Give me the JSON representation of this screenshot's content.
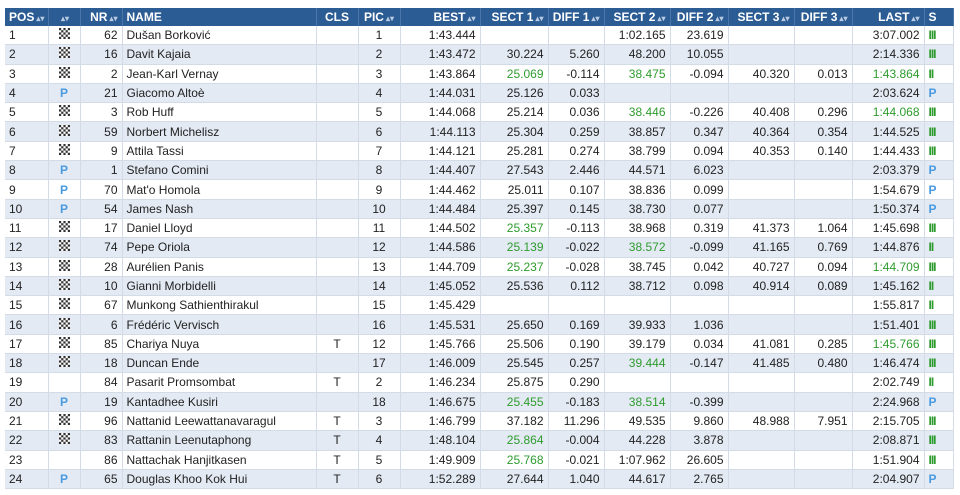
{
  "table": {
    "header": [
      "POS",
      null,
      "NR",
      "NAME",
      "CLS",
      "PIC",
      "BEST",
      "SECT 1",
      "DIFF 1",
      "SECT 2",
      "DIFF 2",
      "SECT 3",
      "DIFF 3",
      "LAST",
      "S"
    ],
    "rows": [
      {
        "flag": true,
        "green": [],
        "cells": [
          "1",
          null,
          "62",
          "Dušan Borković",
          null,
          "1",
          "1:43.444",
          null,
          null,
          "1:02.165",
          "23.619",
          null,
          null,
          "3:07.002",
          "III"
        ]
      },
      {
        "flag": true,
        "green": [],
        "cells": [
          "2",
          null,
          "16",
          "Davit Kajaia",
          null,
          "2",
          "1:43.472",
          "30.224",
          "5.260",
          "48.200",
          "10.055",
          null,
          null,
          "2:14.336",
          "III"
        ]
      },
      {
        "flag": true,
        "green": [
          7,
          9,
          13
        ],
        "cells": [
          "3",
          null,
          "2",
          "Jean-Karl Vernay",
          null,
          "3",
          "1:43.864",
          "25.069",
          "-0.114",
          "38.475",
          "-0.094",
          "40.320",
          "0.013",
          "1:43.864",
          "II"
        ]
      },
      {
        "flag": false,
        "green": [],
        "cells": [
          "4",
          "P",
          "21",
          "Giacomo Altoè",
          null,
          "4",
          "1:44.031",
          "25.126",
          "0.033",
          null,
          null,
          null,
          null,
          "2:03.624",
          "P"
        ]
      },
      {
        "flag": true,
        "green": [
          9,
          13
        ],
        "cells": [
          "5",
          null,
          "3",
          "Rob Huff",
          null,
          "5",
          "1:44.068",
          "25.214",
          "0.036",
          "38.446",
          "-0.226",
          "40.408",
          "0.296",
          "1:44.068",
          "III"
        ]
      },
      {
        "flag": true,
        "green": [],
        "cells": [
          "6",
          null,
          "59",
          "Norbert Michelisz",
          null,
          "6",
          "1:44.113",
          "25.304",
          "0.259",
          "38.857",
          "0.347",
          "40.364",
          "0.354",
          "1:44.525",
          "III"
        ]
      },
      {
        "flag": true,
        "green": [],
        "cells": [
          "7",
          null,
          "9",
          "Attila Tassi",
          null,
          "7",
          "1:44.121",
          "25.281",
          "0.274",
          "38.799",
          "0.094",
          "40.353",
          "0.140",
          "1:44.433",
          "III"
        ]
      },
      {
        "flag": false,
        "green": [],
        "cells": [
          "8",
          "P",
          "1",
          "Stefano Comini",
          null,
          "8",
          "1:44.407",
          "27.543",
          "2.446",
          "44.571",
          "6.023",
          null,
          null,
          "2:03.379",
          "P"
        ]
      },
      {
        "flag": false,
        "green": [],
        "cells": [
          "9",
          "P",
          "70",
          "Mat'o Homola",
          null,
          "9",
          "1:44.462",
          "25.011",
          "0.107",
          "38.836",
          "0.099",
          null,
          null,
          "1:54.679",
          "P"
        ]
      },
      {
        "flag": false,
        "green": [],
        "cells": [
          "10",
          "P",
          "54",
          "James Nash",
          null,
          "10",
          "1:44.484",
          "25.397",
          "0.145",
          "38.730",
          "0.077",
          null,
          null,
          "1:50.374",
          "P"
        ]
      },
      {
        "flag": true,
        "green": [
          7
        ],
        "cells": [
          "11",
          null,
          "17",
          "Daniel Lloyd",
          null,
          "11",
          "1:44.502",
          "25.357",
          "-0.113",
          "38.968",
          "0.319",
          "41.373",
          "1.064",
          "1:45.698",
          "III"
        ]
      },
      {
        "flag": true,
        "green": [
          7,
          9
        ],
        "cells": [
          "12",
          null,
          "74",
          "Pepe Oriola",
          null,
          "12",
          "1:44.586",
          "25.139",
          "-0.022",
          "38.572",
          "-0.099",
          "41.165",
          "0.769",
          "1:44.876",
          "II"
        ]
      },
      {
        "flag": true,
        "green": [
          7,
          13
        ],
        "cells": [
          "13",
          null,
          "28",
          "Aurélien Panis",
          null,
          "13",
          "1:44.709",
          "25.237",
          "-0.028",
          "38.745",
          "0.042",
          "40.727",
          "0.094",
          "1:44.709",
          "III"
        ]
      },
      {
        "flag": true,
        "green": [],
        "cells": [
          "14",
          null,
          "10",
          "Gianni Morbidelli",
          null,
          "14",
          "1:45.052",
          "25.536",
          "0.112",
          "38.712",
          "0.098",
          "40.914",
          "0.089",
          "1:45.162",
          "II"
        ]
      },
      {
        "flag": true,
        "green": [],
        "cells": [
          "15",
          null,
          "67",
          "Munkong Sathienthirakul",
          null,
          "15",
          "1:45.429",
          null,
          null,
          null,
          null,
          null,
          null,
          "1:55.817",
          "II"
        ]
      },
      {
        "flag": true,
        "green": [],
        "cells": [
          "16",
          null,
          "6",
          "Frédéric Vervisch",
          null,
          "16",
          "1:45.531",
          "25.650",
          "0.169",
          "39.933",
          "1.036",
          null,
          null,
          "1:51.401",
          "III"
        ]
      },
      {
        "flag": true,
        "green": [
          13
        ],
        "cells": [
          "17",
          null,
          "85",
          "Chariya Nuya",
          "T",
          "12",
          "1:45.766",
          "25.506",
          "0.190",
          "39.179",
          "0.034",
          "41.081",
          "0.285",
          "1:45.766",
          "III"
        ]
      },
      {
        "flag": true,
        "green": [
          9
        ],
        "cells": [
          "18",
          null,
          "18",
          "Duncan Ende",
          null,
          "17",
          "1:46.009",
          "25.545",
          "0.257",
          "39.444",
          "-0.147",
          "41.485",
          "0.480",
          "1:46.474",
          "III"
        ]
      },
      {
        "flag": false,
        "green": [],
        "cells": [
          "19",
          null,
          "84",
          "Pasarit Promsombat",
          "T",
          "2",
          "1:46.234",
          "25.875",
          "0.290",
          null,
          null,
          null,
          null,
          "2:02.749",
          "II"
        ]
      },
      {
        "flag": false,
        "green": [
          7,
          9
        ],
        "cells": [
          "20",
          "P",
          "19",
          "Kantadhee Kusiri",
          null,
          "18",
          "1:46.675",
          "25.455",
          "-0.183",
          "38.514",
          "-0.399",
          null,
          null,
          "2:24.968",
          "P"
        ]
      },
      {
        "flag": true,
        "green": [],
        "cells": [
          "21",
          null,
          "96",
          "Nattanid Leewattanavaragul",
          "T",
          "3",
          "1:46.799",
          "37.182",
          "11.296",
          "49.535",
          "9.860",
          "48.988",
          "7.951",
          "2:15.705",
          "III"
        ]
      },
      {
        "flag": true,
        "green": [
          7
        ],
        "cells": [
          "22",
          null,
          "83",
          "Rattanin Leenutaphong",
          "T",
          "4",
          "1:48.104",
          "25.864",
          "-0.004",
          "44.228",
          "3.878",
          null,
          null,
          "2:08.871",
          "III"
        ]
      },
      {
        "flag": false,
        "green": [
          7
        ],
        "cells": [
          "23",
          null,
          "86",
          "Nattachak Hanjitkasen",
          "T",
          "5",
          "1:49.909",
          "25.768",
          "-0.021",
          "1:07.962",
          "26.605",
          null,
          null,
          "1:51.904",
          "III"
        ]
      },
      {
        "flag": false,
        "green": [],
        "cells": [
          "24",
          "P",
          "65",
          "Douglas Khoo Kok Hui",
          "T",
          "6",
          "1:52.289",
          "27.644",
          "1.040",
          "44.617",
          "2.765",
          null,
          null,
          "2:04.907",
          "P"
        ]
      }
    ]
  }
}
